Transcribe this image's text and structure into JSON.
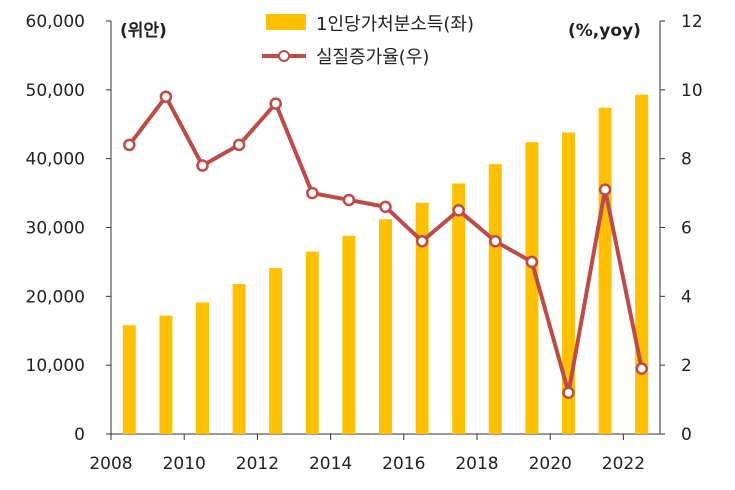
{
  "chart_data": {
    "type": "bar+line",
    "categories": [
      "2008",
      "2009",
      "2010",
      "2011",
      "2012",
      "2013",
      "2014",
      "2015",
      "2016",
      "2017",
      "2018",
      "2019",
      "2020",
      "2021",
      "2022"
    ],
    "x_tick_labels": [
      "2008",
      "2010",
      "2012",
      "2014",
      "2016",
      "2018",
      "2020",
      "2022"
    ],
    "left_axis": {
      "unit_label": "(위안)",
      "ylim": [
        0,
        60000
      ],
      "tick_labels": [
        "0",
        "10,000",
        "20,000",
        "30,000",
        "40,000",
        "50,000",
        "60,000"
      ]
    },
    "right_axis": {
      "unit_label": "(%,yoy)",
      "ylim": [
        0,
        12
      ],
      "tick_labels": [
        "0",
        "2",
        "4",
        "6",
        "8",
        "10",
        "12"
      ]
    },
    "series": [
      {
        "name": "1인당가처분소득(좌)",
        "type": "bar",
        "axis": "left",
        "color": "#FFC000",
        "values": [
          15800,
          17200,
          19100,
          21800,
          24100,
          26500,
          28800,
          31200,
          33600,
          36400,
          39200,
          42400,
          43800,
          47400,
          49300
        ]
      },
      {
        "name": "실질증가율(우)",
        "type": "line",
        "axis": "right",
        "color": "#BE4B48",
        "marker_fill": "#FFFFFF",
        "values": [
          8.4,
          9.8,
          7.8,
          8.4,
          9.6,
          7.0,
          6.8,
          6.6,
          5.6,
          6.5,
          5.6,
          5.0,
          1.2,
          7.1,
          1.9
        ]
      }
    ],
    "legend_position": "top-center",
    "grid": false
  }
}
